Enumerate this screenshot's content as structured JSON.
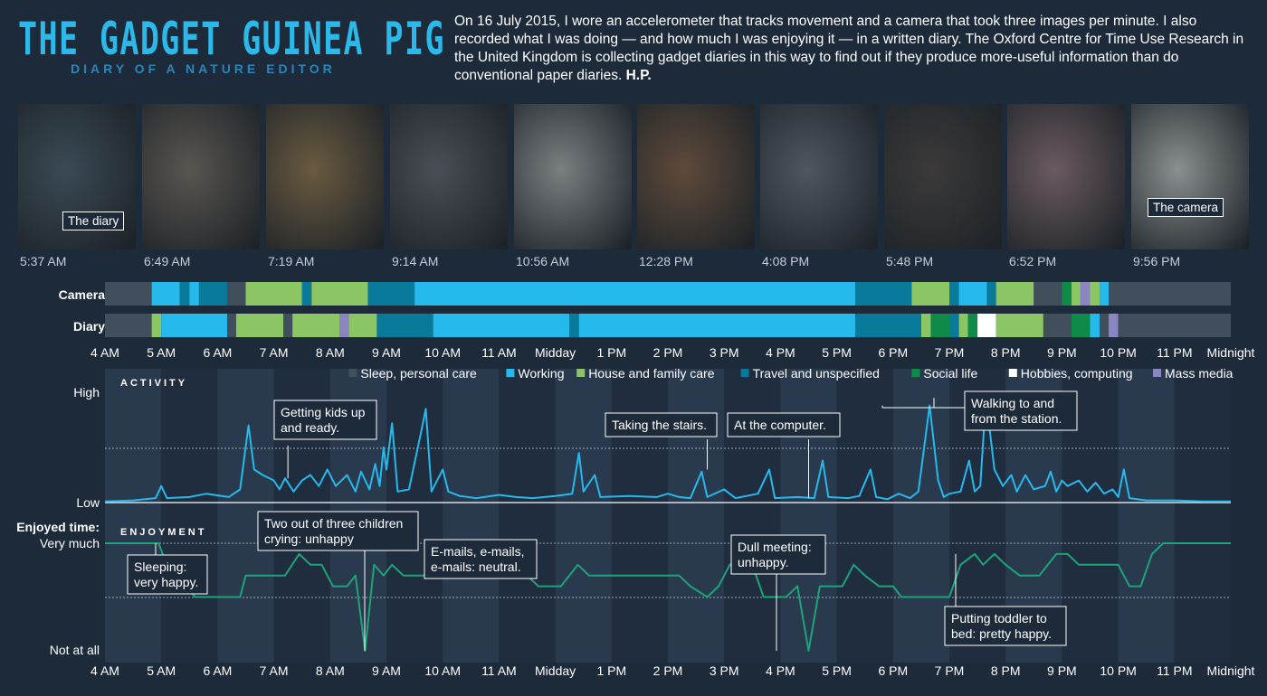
{
  "header": {
    "title": "THE GADGET GUINEA PIG",
    "subtitle": "DIARY OF A NATURE EDITOR",
    "intro": "On 16 July 2015, I wore an accelerometer that tracks movement and a camera that took three images per minute. I also recorded what I was doing — and how much I was enjoying it — in a written diary. The Oxford Centre for Time Use Research in the United Kingdom is collecting gadget diaries in this way to find out if they produce more-useful information than do conventional paper diaries.",
    "byline": "H.P."
  },
  "photos": [
    {
      "time": "5:37 AM",
      "label": "The diary",
      "bg": "#3a4a55"
    },
    {
      "time": "6:49 AM",
      "label": "",
      "bg": "#5a5550"
    },
    {
      "time": "7:19 AM",
      "label": "",
      "bg": "#6a5a40"
    },
    {
      "time": "9:14 AM",
      "label": "",
      "bg": "#4a4e55"
    },
    {
      "time": "10:56 AM",
      "label": "",
      "bg": "#7a7f82"
    },
    {
      "time": "12:28 PM",
      "label": "",
      "bg": "#5e4a3a"
    },
    {
      "time": "4:08 PM",
      "label": "",
      "bg": "#4e5660"
    },
    {
      "time": "5:48 PM",
      "label": "",
      "bg": "#3c3a3a"
    },
    {
      "time": "6:52 PM",
      "label": "",
      "bg": "#6a5a60"
    },
    {
      "time": "9:56 PM",
      "label": "The camera",
      "bg": "#8a9090"
    }
  ],
  "chart_data": {
    "type": "timeline",
    "x_ticks": [
      "4 AM",
      "5 AM",
      "6 AM",
      "7 AM",
      "8 AM",
      "9 AM",
      "10 AM",
      "11 AM",
      "Midday",
      "1 PM",
      "2 PM",
      "3 PM",
      "4 PM",
      "5 PM",
      "6 PM",
      "7 PM",
      "8 PM",
      "9 PM",
      "10 PM",
      "11 PM",
      "Midnight"
    ],
    "x_range_hours": [
      4,
      24
    ],
    "legend": [
      {
        "name": "Sleep, personal care",
        "color": "#414f5c"
      },
      {
        "name": "Working",
        "color": "#25b9ec"
      },
      {
        "name": "House and family care",
        "color": "#8cc563"
      },
      {
        "name": "Travel and unspecified",
        "color": "#0a7a9a"
      },
      {
        "name": "Social life",
        "color": "#108a48"
      },
      {
        "name": "Hobbies, computing",
        "color": "#ffffff"
      },
      {
        "name": "Mass media",
        "color": "#8b86c2"
      }
    ],
    "category_colors": {
      "sleep": "#414f5c",
      "work": "#25b9ec",
      "house": "#8cc563",
      "travel": "#0a7a9a",
      "social": "#108a48",
      "hobby": "#ffffff",
      "media": "#8b86c2"
    },
    "timelines": [
      {
        "name": "Camera",
        "segments": [
          [
            4.0,
            4.83,
            "sleep"
          ],
          [
            4.83,
            5.33,
            "work"
          ],
          [
            5.33,
            5.5,
            "travel"
          ],
          [
            5.5,
            5.67,
            "work"
          ],
          [
            5.67,
            6.17,
            "travel"
          ],
          [
            6.17,
            6.5,
            "sleep"
          ],
          [
            6.5,
            7.5,
            "house"
          ],
          [
            7.5,
            7.67,
            "travel"
          ],
          [
            7.67,
            8.67,
            "house"
          ],
          [
            8.67,
            9.5,
            "travel"
          ],
          [
            9.5,
            17.33,
            "work"
          ],
          [
            17.33,
            18.33,
            "travel"
          ],
          [
            18.33,
            19.0,
            "house"
          ],
          [
            19.0,
            19.17,
            "travel"
          ],
          [
            19.17,
            19.67,
            "work"
          ],
          [
            19.67,
            19.83,
            "travel"
          ],
          [
            19.83,
            20.5,
            "house"
          ],
          [
            20.5,
            21.0,
            "sleep"
          ],
          [
            21.0,
            21.17,
            "social"
          ],
          [
            21.17,
            21.33,
            "house"
          ],
          [
            21.33,
            21.5,
            "media"
          ],
          [
            21.5,
            21.67,
            "house"
          ],
          [
            21.67,
            21.83,
            "work"
          ],
          [
            21.83,
            24.0,
            "sleep"
          ]
        ]
      },
      {
        "name": "Diary",
        "segments": [
          [
            4.0,
            4.83,
            "sleep"
          ],
          [
            4.83,
            5.0,
            "house"
          ],
          [
            5.0,
            6.17,
            "work"
          ],
          [
            6.17,
            6.33,
            "sleep"
          ],
          [
            6.33,
            7.17,
            "house"
          ],
          [
            7.17,
            7.33,
            "sleep"
          ],
          [
            7.33,
            8.17,
            "house"
          ],
          [
            8.17,
            8.33,
            "media"
          ],
          [
            8.33,
            8.83,
            "house"
          ],
          [
            8.83,
            9.83,
            "travel"
          ],
          [
            9.83,
            12.25,
            "work"
          ],
          [
            12.25,
            12.42,
            "travel"
          ],
          [
            12.42,
            17.33,
            "work"
          ],
          [
            17.33,
            18.5,
            "travel"
          ],
          [
            18.5,
            18.67,
            "house"
          ],
          [
            18.67,
            19.0,
            "social"
          ],
          [
            19.0,
            19.17,
            "travel"
          ],
          [
            19.17,
            19.33,
            "house"
          ],
          [
            19.33,
            19.5,
            "social"
          ],
          [
            19.5,
            19.83,
            "hobby"
          ],
          [
            19.83,
            20.67,
            "house"
          ],
          [
            20.67,
            21.17,
            "sleep"
          ],
          [
            21.17,
            21.5,
            "social"
          ],
          [
            21.5,
            21.67,
            "work"
          ],
          [
            21.67,
            21.83,
            "sleep"
          ],
          [
            21.83,
            22.0,
            "media"
          ],
          [
            22.0,
            24.0,
            "sleep"
          ]
        ]
      }
    ],
    "activity": {
      "title": "ACTIVITY",
      "y_labels": [
        "High",
        "Low"
      ],
      "points": [
        [
          4.0,
          0.01
        ],
        [
          4.5,
          0.02
        ],
        [
          4.9,
          0.04
        ],
        [
          5.0,
          0.15
        ],
        [
          5.1,
          0.04
        ],
        [
          5.5,
          0.05
        ],
        [
          5.8,
          0.08
        ],
        [
          6.2,
          0.05
        ],
        [
          6.4,
          0.12
        ],
        [
          6.55,
          0.7
        ],
        [
          6.65,
          0.3
        ],
        [
          6.8,
          0.25
        ],
        [
          7.0,
          0.2
        ],
        [
          7.1,
          0.12
        ],
        [
          7.2,
          0.22
        ],
        [
          7.35,
          0.1
        ],
        [
          7.5,
          0.2
        ],
        [
          7.65,
          0.25
        ],
        [
          7.8,
          0.15
        ],
        [
          7.95,
          0.3
        ],
        [
          8.1,
          0.15
        ],
        [
          8.3,
          0.25
        ],
        [
          8.45,
          0.1
        ],
        [
          8.55,
          0.28
        ],
        [
          8.7,
          0.12
        ],
        [
          8.8,
          0.35
        ],
        [
          8.88,
          0.15
        ],
        [
          8.95,
          0.5
        ],
        [
          9.0,
          0.3
        ],
        [
          9.1,
          0.72
        ],
        [
          9.2,
          0.1
        ],
        [
          9.4,
          0.12
        ],
        [
          9.6,
          0.6
        ],
        [
          9.7,
          0.85
        ],
        [
          9.8,
          0.1
        ],
        [
          10.0,
          0.3
        ],
        [
          10.1,
          0.1
        ],
        [
          10.3,
          0.06
        ],
        [
          10.6,
          0.04
        ],
        [
          11.0,
          0.07
        ],
        [
          11.3,
          0.05
        ],
        [
          11.6,
          0.04
        ],
        [
          12.0,
          0.06
        ],
        [
          12.3,
          0.08
        ],
        [
          12.42,
          0.45
        ],
        [
          12.5,
          0.1
        ],
        [
          12.7,
          0.25
        ],
        [
          12.8,
          0.05
        ],
        [
          13.3,
          0.06
        ],
        [
          13.8,
          0.05
        ],
        [
          14.0,
          0.08
        ],
        [
          14.2,
          0.05
        ],
        [
          14.4,
          0.04
        ],
        [
          14.6,
          0.28
        ],
        [
          14.7,
          0.05
        ],
        [
          15.0,
          0.12
        ],
        [
          15.2,
          0.04
        ],
        [
          15.6,
          0.08
        ],
        [
          15.8,
          0.3
        ],
        [
          15.9,
          0.04
        ],
        [
          16.3,
          0.05
        ],
        [
          16.6,
          0.04
        ],
        [
          16.75,
          0.38
        ],
        [
          16.85,
          0.05
        ],
        [
          17.2,
          0.04
        ],
        [
          17.4,
          0.06
        ],
        [
          17.6,
          0.3
        ],
        [
          17.7,
          0.05
        ],
        [
          17.9,
          0.03
        ],
        [
          18.1,
          0.08
        ],
        [
          18.3,
          0.04
        ],
        [
          18.45,
          0.1
        ],
        [
          18.65,
          0.88
        ],
        [
          18.8,
          0.2
        ],
        [
          18.9,
          0.05
        ],
        [
          19.0,
          0.08
        ],
        [
          19.2,
          0.1
        ],
        [
          19.35,
          0.38
        ],
        [
          19.45,
          0.1
        ],
        [
          19.55,
          0.15
        ],
        [
          19.65,
          0.95
        ],
        [
          19.8,
          0.3
        ],
        [
          19.95,
          0.15
        ],
        [
          20.1,
          0.25
        ],
        [
          20.2,
          0.1
        ],
        [
          20.35,
          0.25
        ],
        [
          20.5,
          0.12
        ],
        [
          20.7,
          0.15
        ],
        [
          20.8,
          0.28
        ],
        [
          20.9,
          0.1
        ],
        [
          21.0,
          0.2
        ],
        [
          21.1,
          0.15
        ],
        [
          21.3,
          0.2
        ],
        [
          21.45,
          0.1
        ],
        [
          21.6,
          0.18
        ],
        [
          21.75,
          0.08
        ],
        [
          21.9,
          0.12
        ],
        [
          22.0,
          0.05
        ],
        [
          22.1,
          0.3
        ],
        [
          22.2,
          0.04
        ],
        [
          22.5,
          0.02
        ],
        [
          23.0,
          0.02
        ],
        [
          23.5,
          0.01
        ],
        [
          24.0,
          0.01
        ]
      ]
    },
    "enjoyment": {
      "title": "ENJOYMENT",
      "axis_label": "Enjoyed time:",
      "y_labels": [
        "Very much",
        "Not at all"
      ],
      "points": [
        [
          4.0,
          1.0
        ],
        [
          4.95,
          1.0
        ],
        [
          5.25,
          0.2
        ],
        [
          5.45,
          0.2
        ],
        [
          5.6,
          0.0
        ],
        [
          6.4,
          0.0
        ],
        [
          6.5,
          0.4
        ],
        [
          7.2,
          0.4
        ],
        [
          7.45,
          0.8
        ],
        [
          7.65,
          0.6
        ],
        [
          7.85,
          0.6
        ],
        [
          8.05,
          0.2
        ],
        [
          8.3,
          0.2
        ],
        [
          8.45,
          0.4
        ],
        [
          8.62,
          -1.0
        ],
        [
          8.78,
          0.6
        ],
        [
          8.95,
          0.4
        ],
        [
          9.1,
          0.6
        ],
        [
          9.3,
          0.4
        ],
        [
          11.5,
          0.4
        ],
        [
          11.7,
          0.2
        ],
        [
          12.1,
          0.2
        ],
        [
          12.4,
          0.6
        ],
        [
          12.6,
          0.4
        ],
        [
          13.0,
          0.4
        ],
        [
          13.3,
          0.4
        ],
        [
          13.4,
          0.4
        ],
        [
          14.2,
          0.4
        ],
        [
          14.4,
          0.2
        ],
        [
          14.7,
          0.0
        ],
        [
          14.9,
          0.2
        ],
        [
          15.1,
          0.6
        ],
        [
          15.5,
          0.6
        ],
        [
          15.7,
          0.0
        ],
        [
          16.1,
          0.0
        ],
        [
          16.3,
          0.2
        ],
        [
          16.5,
          -1.0
        ],
        [
          16.7,
          0.2
        ],
        [
          17.1,
          0.2
        ],
        [
          17.3,
          0.6
        ],
        [
          17.5,
          0.4
        ],
        [
          17.75,
          0.2
        ],
        [
          18.0,
          0.2
        ],
        [
          18.15,
          0.0
        ],
        [
          19.0,
          0.0
        ],
        [
          19.2,
          0.6
        ],
        [
          19.45,
          0.8
        ],
        [
          19.6,
          0.6
        ],
        [
          19.8,
          0.8
        ],
        [
          20.0,
          0.6
        ],
        [
          20.25,
          0.4
        ],
        [
          20.6,
          0.4
        ],
        [
          20.9,
          0.8
        ],
        [
          21.1,
          0.8
        ],
        [
          21.3,
          0.6
        ],
        [
          22.0,
          0.6
        ],
        [
          22.2,
          0.2
        ],
        [
          22.4,
          0.2
        ],
        [
          22.6,
          0.8
        ],
        [
          22.8,
          1.0
        ],
        [
          24.0,
          1.0
        ]
      ]
    },
    "annotations": {
      "activity": [
        {
          "text": [
            "Getting kids up",
            "and ready."
          ],
          "at": 7.25,
          "value": 0.22
        },
        {
          "text": [
            "Taking the stairs."
          ],
          "at": 14.7,
          "value": 0.3
        },
        {
          "text": [
            "At the computer."
          ],
          "at": 16.5,
          "value": 0.04
        },
        {
          "text": [
            "Walking to and",
            "from the station."
          ],
          "at": 18.65,
          "value": 0.88
        }
      ],
      "enjoyment": [
        {
          "text": [
            "Sleeping:",
            "very happy."
          ],
          "at": 4.9,
          "value": 1.0
        },
        {
          "text": [
            "Two out of three children",
            "crying: unhappy"
          ],
          "at": 8.62,
          "value": -1.0
        },
        {
          "text": [
            "E-mails, e-mails,",
            "e-mails: neutral."
          ],
          "at": 10.3,
          "value": 0.4
        },
        {
          "text": [
            "Dull meeting:",
            "unhappy."
          ],
          "at": 16.5,
          "value": -1.0
        },
        {
          "text": [
            "Putting toddler to",
            "bed: pretty happy."
          ],
          "at": 19.8,
          "value": 0.8
        }
      ]
    }
  }
}
